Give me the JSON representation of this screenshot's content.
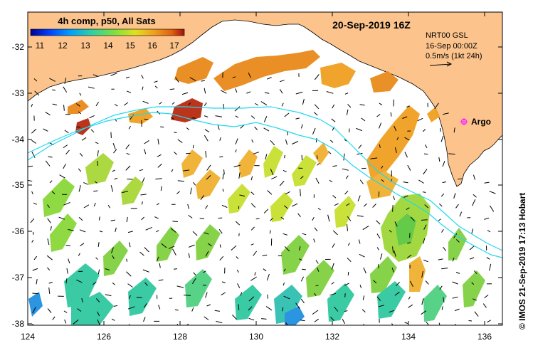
{
  "map": {
    "colorbar_title": "4h comp, p50, All Sats",
    "colorbar_ticks": [
      "11",
      "12",
      "13",
      "14",
      "15",
      "16",
      "17"
    ],
    "date_label": "20-Sep-2019 16Z",
    "info_line1": "NRT00 GSL",
    "info_line2": "16-Sep 00:00Z",
    "info_line3": "0.5m/s (1kt 24h)",
    "argo_label": "Argo",
    "credit": "© IMOS 21-Sep-2019 17:13 Hobart",
    "x_ticks": [
      "124",
      "126",
      "128",
      "130",
      "132",
      "134",
      "136"
    ],
    "y_ticks": [
      "-32",
      "-33",
      "-34",
      "-35",
      "-36",
      "-37",
      "-38"
    ],
    "colors": {
      "land": "#fcc48c",
      "cyan_line": "#20d8f0",
      "argo_marker": "#ff20ff"
    },
    "colorbar_colors": [
      "#000090",
      "#0040ff",
      "#00a0ff",
      "#30d0a0",
      "#80e040",
      "#e0e020",
      "#f0a020",
      "#e06010",
      "#a01010"
    ]
  }
}
